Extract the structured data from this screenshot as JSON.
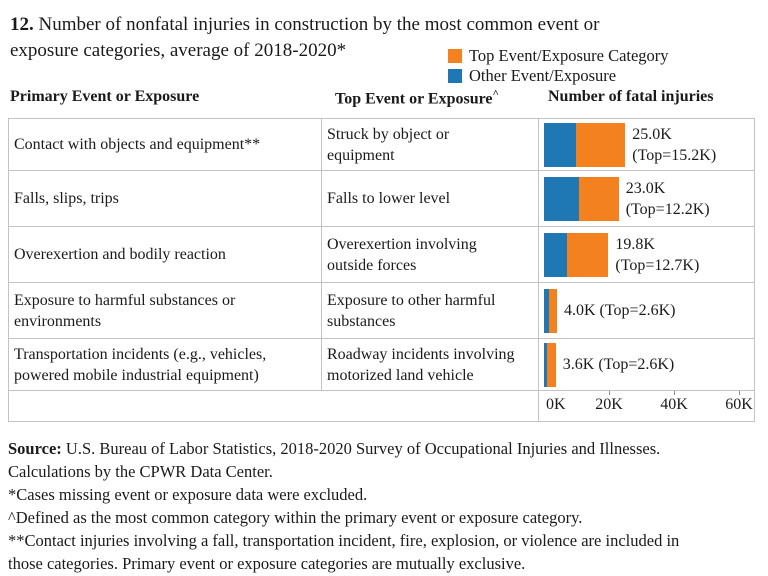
{
  "chart_data": {
    "type": "bar",
    "orientation": "horizontal",
    "stacked": true,
    "title": "12. Number of nonfatal injuries in construction by the most common event or exposure categories, average of 2018-2020*",
    "categories": [
      "Contact with objects and equipment**",
      "Falls, slips, trips",
      "Overexertion and bodily reaction",
      "Exposure to harmful substances or environments",
      "Transportation incidents (e.g., vehicles, powered mobile industrial equipment)"
    ],
    "series": [
      {
        "name": "Other Event/Exposure",
        "color": "#1F77B4",
        "values": [
          9.8,
          10.8,
          7.1,
          1.4,
          1.0
        ]
      },
      {
        "name": "Top Event/Exposure Category",
        "color": "#F4811F",
        "values": [
          15.2,
          12.2,
          12.7,
          2.6,
          2.6
        ]
      }
    ],
    "totals_k": [
      25.0,
      23.0,
      19.8,
      4.0,
      3.6
    ],
    "data_labels": [
      "25.0K (Top=15.2K)",
      "23.0K (Top=12.2K)",
      "19.8K (Top=12.7K)",
      "4.0K (Top=2.6K)",
      "3.6K (Top=2.6K)"
    ],
    "x_tick_labels": [
      "0K",
      "20K",
      "40K",
      "60K"
    ],
    "xlim": [
      0,
      65
    ],
    "unit": "thousands of injuries",
    "grid": false,
    "legend_position": "top-right"
  },
  "title": {
    "number": "12.",
    "line1": "Number of nonfatal injuries in construction by the most common event or",
    "line2": "exposure categories, average of 2018-2020*"
  },
  "colors": {
    "top_event": "#F4811F",
    "other_event": "#1F77B4",
    "border": "#C3C3C3"
  },
  "legend": {
    "items": [
      {
        "label": "Top Event/Exposure Category"
      },
      {
        "label": "Other Event/Exposure"
      }
    ]
  },
  "table": {
    "headers": {
      "col1": "Primary Event or Exposure",
      "col2": "Top Event or Exposure",
      "col2_sup": "^",
      "col3": "Number of fatal injuries"
    },
    "rows": [
      {
        "primary": "Contact with objects and equipment**",
        "top_event": "Struck by object or\nequipment",
        "bar_label": "25.0K\n(Top=15.2K)",
        "total_k": 25.0,
        "top_k": 15.2,
        "other_k": 9.8
      },
      {
        "primary": "Falls, slips, trips",
        "top_event": "Falls to lower level",
        "bar_label": "23.0K\n(Top=12.2K)",
        "total_k": 23.0,
        "top_k": 12.2,
        "other_k": 10.8
      },
      {
        "primary": "Overexertion and bodily reaction",
        "top_event": "Overexertion involving\noutside forces",
        "bar_label": "19.8K\n(Top=12.7K)",
        "total_k": 19.8,
        "top_k": 12.7,
        "other_k": 7.1
      },
      {
        "primary": "Exposure to harmful substances or\nenvironments",
        "top_event": "Exposure to other harmful\nsubstances",
        "bar_label": "4.0K (Top=2.6K)",
        "total_k": 4.0,
        "top_k": 2.6,
        "other_k": 1.4
      },
      {
        "primary": "Transportation incidents (e.g., vehicles,\npowered mobile industrial equipment)",
        "top_event": "Roadway incidents involving\nmotorized land vehicle",
        "bar_label": "3.6K (Top=2.6K)",
        "total_k": 3.6,
        "top_k": 2.6,
        "other_k": 1.0
      }
    ]
  },
  "axis": {
    "ticks": [
      {
        "label": "0K",
        "value": 0
      },
      {
        "label": "20K",
        "value": 20
      },
      {
        "label": "40K",
        "value": 40
      },
      {
        "label": "60K",
        "value": 60
      }
    ]
  },
  "footer": {
    "source_label": "Source:",
    "source_text": " U.S. Bureau of Labor Statistics, 2018-2020 Survey of Occupational Injuries and Illnesses.\nCalculations by the CPWR Data Center.",
    "note_asterisk": "*Cases missing event or exposure data were excluded.",
    "note_caret": "^Defined as the most common category within the primary event or exposure category.",
    "note_double_asterisk": "**Contact injuries involving a fall, transportation incident, fire, explosion, or violence are included in\nthose categories. Primary event or exposure categories are mutually exclusive."
  }
}
